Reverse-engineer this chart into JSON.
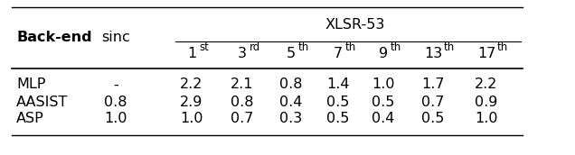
{
  "col_header_top": "XLSR-53",
  "col_bases": [
    "1",
    "3",
    "5",
    "7",
    "9",
    "13",
    "17"
  ],
  "col_supers": [
    "st",
    "rd",
    "th",
    "th",
    "th",
    "th",
    "th"
  ],
  "rows": [
    [
      "MLP",
      "-",
      "2.2",
      "2.1",
      "0.8",
      "1.4",
      "1.0",
      "1.7",
      "2.2"
    ],
    [
      "AASIST",
      "0.8",
      "2.9",
      "0.8",
      "0.4",
      "0.5",
      "0.5",
      "0.7",
      "0.9"
    ],
    [
      "ASP",
      "1.0",
      "1.0",
      "0.7",
      "0.3",
      "0.5",
      "0.4",
      "0.5",
      "1.0"
    ]
  ],
  "background_color": "#ffffff",
  "text_color": "#000000",
  "font_size": 10.5
}
